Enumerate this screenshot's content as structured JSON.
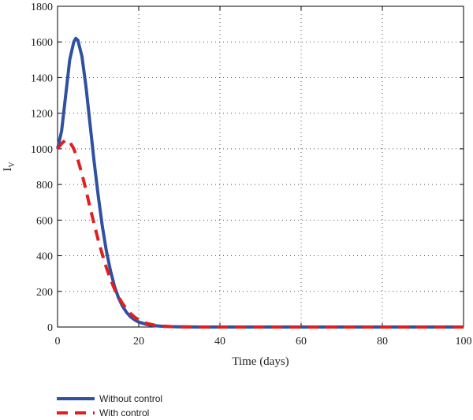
{
  "chart_data": {
    "type": "line",
    "title": "",
    "xlabel": "Time (days)",
    "ylabel_main": "I",
    "ylabel_sub": "V",
    "xlim": [
      0,
      100
    ],
    "ylim": [
      0,
      1800
    ],
    "xticks": [
      "0",
      "20",
      "40",
      "60",
      "80",
      "100"
    ],
    "yticks": [
      "0",
      "200",
      "400",
      "600",
      "800",
      "1000",
      "1200",
      "1400",
      "1600",
      "1800"
    ],
    "grid": true,
    "legend_position": "bottom-left",
    "series": [
      {
        "name": "Without control",
        "color": "#3050a0",
        "style": "solid",
        "x": [
          0,
          1,
          2,
          3,
          4,
          4.5,
          5,
          6,
          7,
          8,
          9,
          10,
          11,
          12,
          13,
          14,
          15,
          16,
          17,
          18,
          19,
          20,
          22,
          24,
          26,
          28,
          30,
          35,
          40,
          50,
          60,
          70,
          80,
          90,
          100
        ],
        "y": [
          1000,
          1100,
          1300,
          1500,
          1600,
          1620,
          1610,
          1520,
          1350,
          1140,
          930,
          740,
          570,
          430,
          320,
          230,
          165,
          117,
          82,
          57,
          40,
          28,
          14,
          7,
          4,
          2,
          1,
          0,
          0,
          0,
          0,
          0,
          0,
          0,
          0
        ]
      },
      {
        "name": "With control",
        "color": "#e02020",
        "style": "dashed",
        "x": [
          0,
          1,
          2,
          3,
          4,
          5,
          6,
          7,
          8,
          9,
          10,
          11,
          12,
          13,
          14,
          15,
          16,
          17,
          18,
          19,
          20,
          22,
          24,
          26,
          28,
          30,
          35,
          40,
          50,
          60,
          70,
          80,
          90,
          100
        ],
        "y": [
          1000,
          1030,
          1050,
          1040,
          1000,
          940,
          860,
          770,
          670,
          580,
          490,
          410,
          335,
          270,
          215,
          170,
          132,
          100,
          75,
          55,
          40,
          20,
          10,
          5,
          2,
          1,
          0,
          0,
          0,
          0,
          0,
          0,
          0,
          0
        ]
      }
    ]
  }
}
